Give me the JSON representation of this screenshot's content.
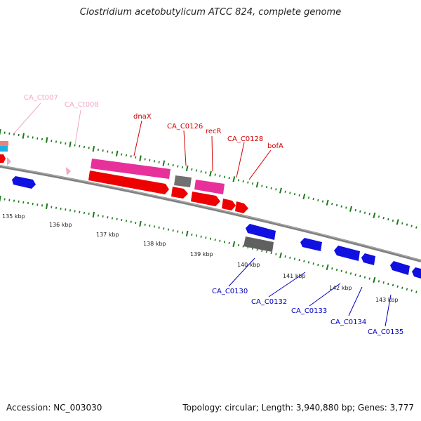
{
  "title": "Clostridium acetobutylicum ATCC 824, complete genome",
  "accession": "Accession: NC_003030",
  "summary": "Topology: circular; Length: 3,940,880 bp; Genes: 3,777",
  "kbp_labels": [
    "135 kbp",
    "136 kbp",
    "137 kbp",
    "138 kbp",
    "139 kbp",
    "140 kbp",
    "141 kbp",
    "142 kbp",
    "143 kbp"
  ],
  "gene_labels": {
    "ca_ct007": "CA_Ct007",
    "ca_ct008": "CA_Ct008",
    "dnax": "dnaX",
    "ca_c0126": "CA_C0126",
    "recr": "recR",
    "ca_c0128": "CA_C0128",
    "bofa": "bofA",
    "ca_c0130": "CA_C0130",
    "ca_c0132": "CA_C0132",
    "ca_c0133": "CA_C0133",
    "ca_c0134": "CA_C0134",
    "ca_c0135": "CA_C0135"
  },
  "colors": {
    "backbone": "#808080",
    "tick": "#1a7a1a",
    "rna_label": "#f4a6c8",
    "forward_label": "#d40000",
    "reverse_label": "#0000c0",
    "gene_red": "#ee0000",
    "gene_pink": "#e8309a",
    "gene_blue": "#1010e0",
    "gene_gray": "#606060",
    "gene_cyan": "#20b0e0"
  }
}
